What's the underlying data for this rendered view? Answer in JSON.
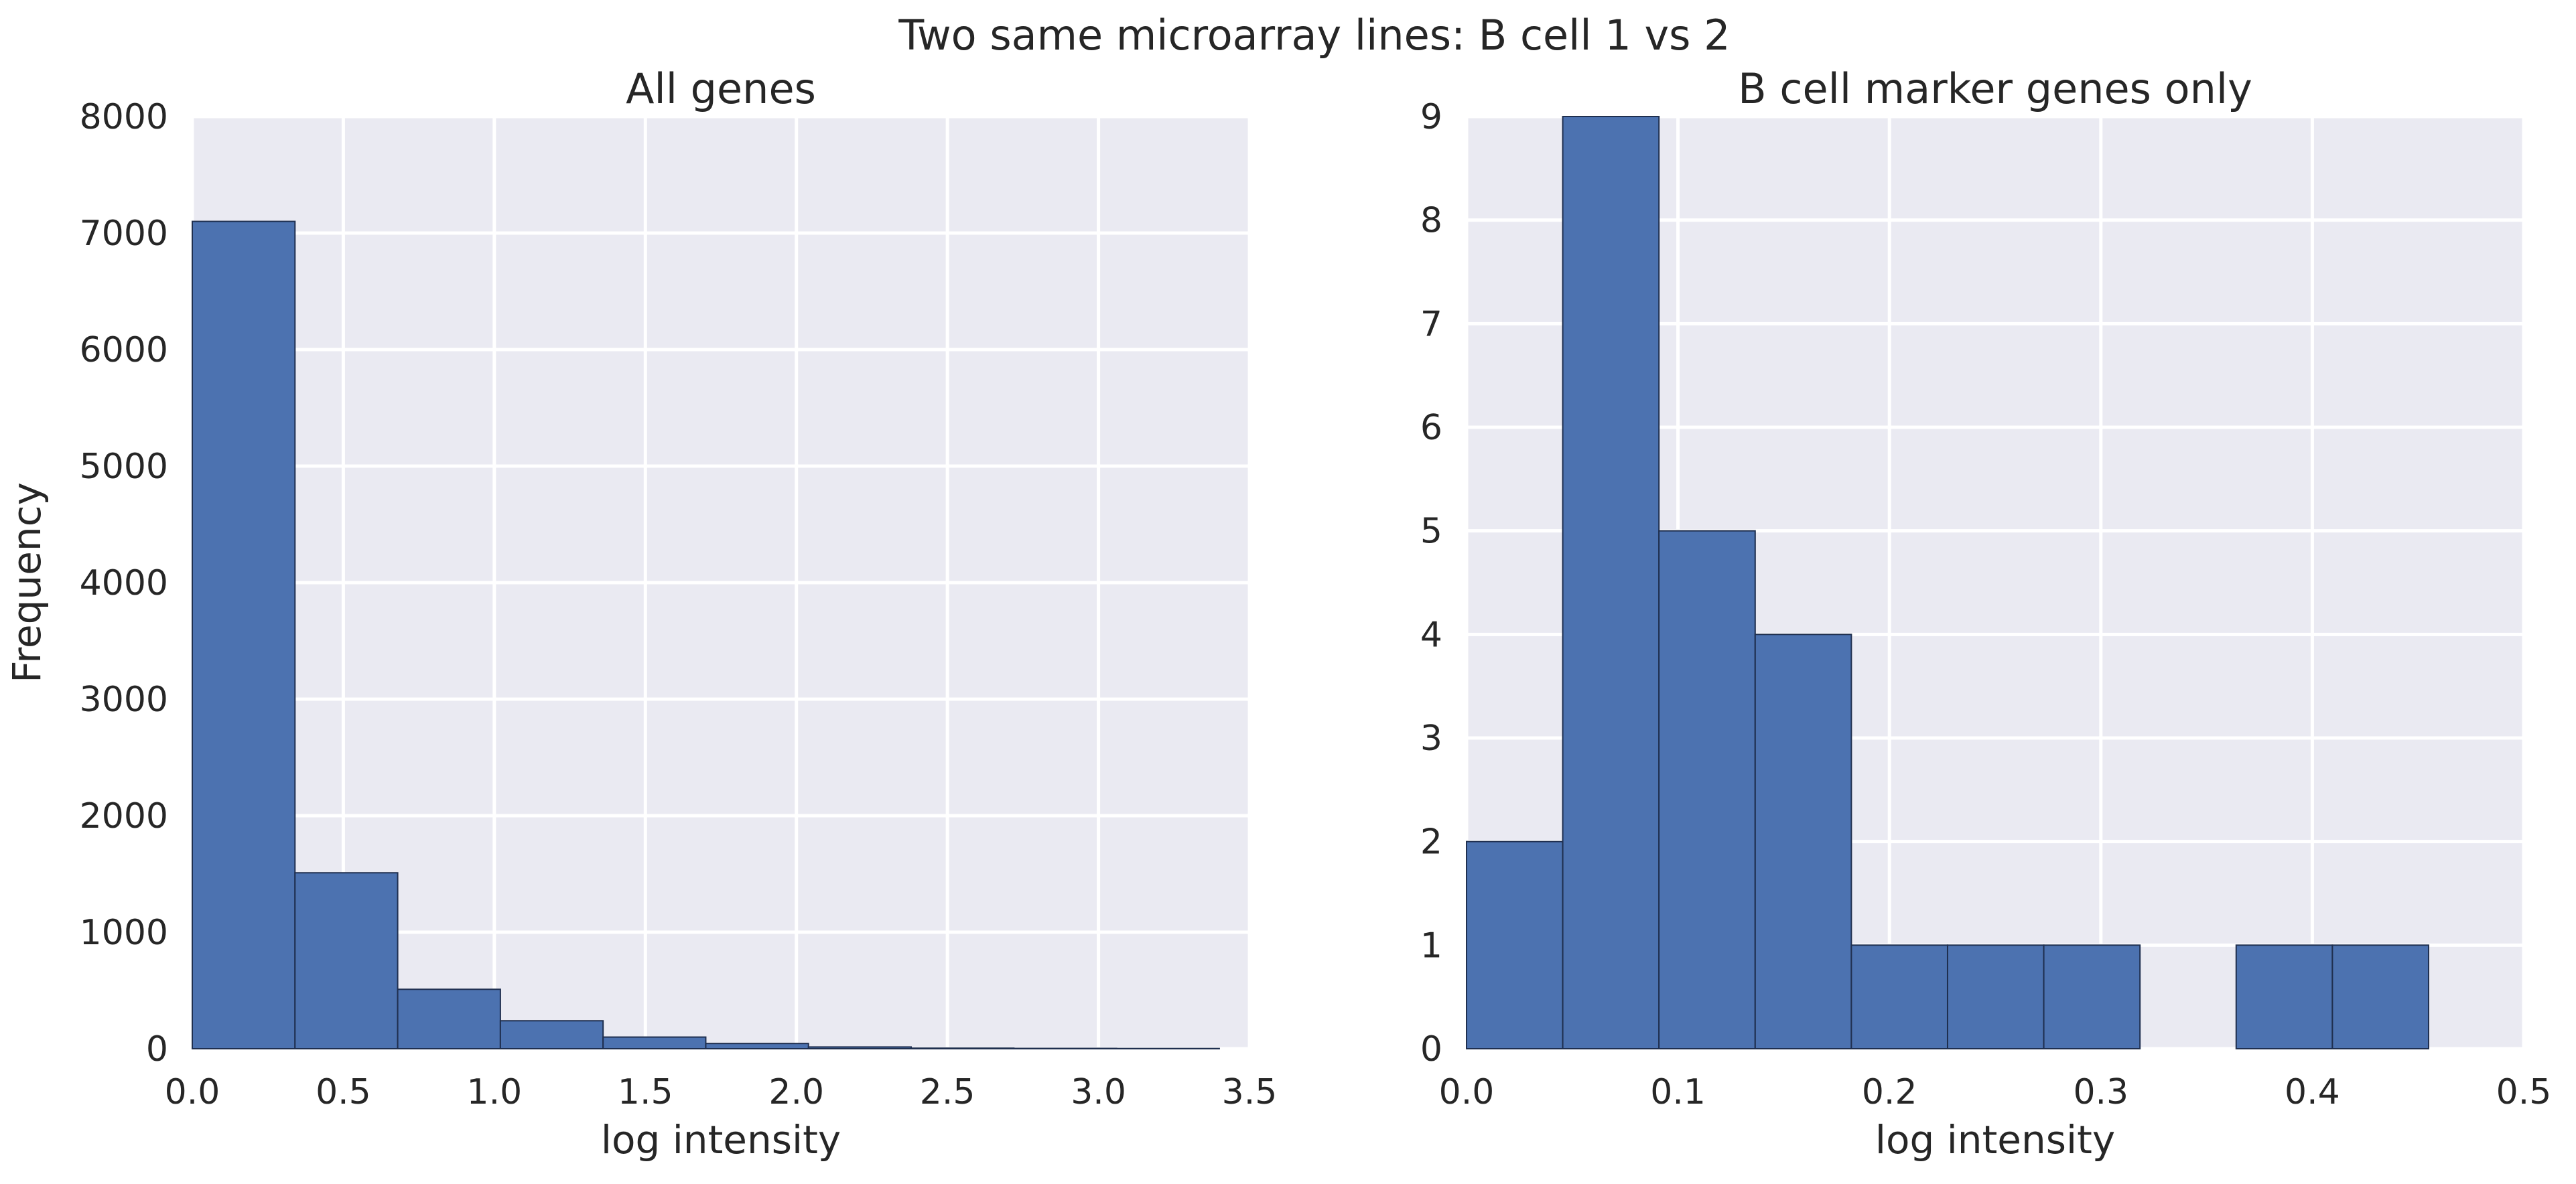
{
  "figure": {
    "suptitle": "Two same microarray lines: B cell 1 vs 2"
  },
  "style": {
    "plot_background": "#EAEAF2",
    "grid_color": "#FFFFFF",
    "bar_fill": "#4C72B0",
    "bar_edge": "#1F2F4F",
    "text_color": "#262626"
  },
  "chart_data": [
    {
      "type": "bar",
      "histogram": true,
      "title": "All genes",
      "xlabel": "log intensity",
      "ylabel": "Frequency",
      "xlim": [
        0,
        3.5
      ],
      "ylim": [
        0,
        8000
      ],
      "xticks": [
        "0.0",
        "0.5",
        "1.0",
        "1.5",
        "2.0",
        "2.5",
        "3.0",
        "3.5"
      ],
      "yticks": [
        "0",
        "1000",
        "2000",
        "3000",
        "4000",
        "5000",
        "6000",
        "7000",
        "8000"
      ],
      "grid": true,
      "bin_edges": [
        0,
        0.34,
        0.68,
        1.02,
        1.36,
        1.7,
        2.04,
        2.38,
        2.72,
        3.06,
        3.4
      ],
      "values": [
        7100,
        1510,
        510,
        240,
        100,
        45,
        15,
        5,
        3,
        2
      ]
    },
    {
      "type": "bar",
      "histogram": true,
      "title": "B cell marker genes only",
      "xlabel": "log intensity",
      "ylabel": "",
      "xlim": [
        0,
        0.5
      ],
      "ylim": [
        0,
        9
      ],
      "xticks": [
        "0.0",
        "0.1",
        "0.2",
        "0.3",
        "0.4",
        "0.5"
      ],
      "yticks": [
        "0",
        "1",
        "2",
        "3",
        "4",
        "5",
        "6",
        "7",
        "8",
        "9"
      ],
      "grid": true,
      "bin_edges": [
        0,
        0.0455,
        0.091,
        0.1365,
        0.182,
        0.2275,
        0.273,
        0.3185,
        0.364,
        0.4095,
        0.455
      ],
      "values": [
        2,
        9,
        5,
        4,
        1,
        1,
        1,
        0,
        1,
        1
      ]
    }
  ]
}
